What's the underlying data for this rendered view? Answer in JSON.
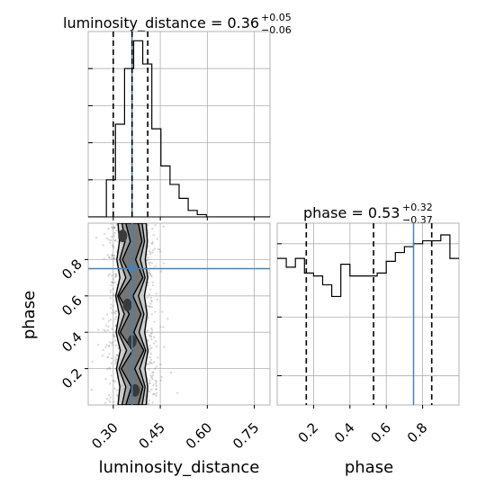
{
  "chart_data": {
    "type": "corner",
    "parameters": [
      "luminosity_distance",
      "phase"
    ],
    "truth": {
      "luminosity_distance": 0.36,
      "phase": 0.75
    },
    "panels": {
      "luminosity_distance_hist": {
        "title": {
          "main": "luminosity_distance = 0.36",
          "sup": "+0.05",
          "sub": "−0.06"
        },
        "quantiles": [
          0.3,
          0.36,
          0.41
        ],
        "xlim": [
          0.22,
          0.8
        ],
        "bins": [
          0.22,
          0.249,
          0.278,
          0.307,
          0.336,
          0.365,
          0.394,
          0.423,
          0.452,
          0.481,
          0.51,
          0.539,
          0.568,
          0.597,
          0.626,
          0.655,
          0.684,
          0.713,
          0.742,
          0.771,
          0.8
        ],
        "counts": [
          0,
          0,
          8,
          20,
          32,
          38,
          33,
          19,
          11,
          7,
          4,
          1.4,
          0.5,
          0,
          0,
          0,
          0,
          0,
          0,
          0
        ]
      },
      "phase_hist": {
        "title": {
          "main": "phase = 0.53",
          "sup": "+0.32",
          "sub": "−0.37"
        },
        "quantiles": [
          0.16,
          0.53,
          0.85
        ],
        "xlim": [
          0.0,
          1.0
        ],
        "bins": [
          0.0,
          0.05,
          0.1,
          0.15,
          0.2,
          0.25,
          0.3,
          0.35,
          0.4,
          0.45,
          0.5,
          0.55,
          0.6,
          0.65,
          0.7,
          0.75,
          0.8,
          0.85,
          0.9,
          0.95,
          1.0
        ],
        "counts": [
          50,
          47,
          50,
          45,
          44,
          41,
          37,
          48,
          44,
          44,
          44,
          45,
          49,
          52,
          54,
          55,
          56,
          56,
          58,
          50
        ],
        "ylim": [
          0,
          62
        ]
      },
      "joint": {
        "xlim": [
          0.22,
          0.8
        ],
        "ylim": [
          0.0,
          1.0
        ],
        "xlabel": "luminosity_distance",
        "ylabel": "phase",
        "contour_x_centers": [
          0.325,
          0.355,
          0.385
        ],
        "contour_half_widths": [
          0.045,
          0.032,
          0.02
        ]
      }
    },
    "ticks": {
      "ld": [
        0.3,
        0.45,
        0.6,
        0.75
      ],
      "ld_labels": [
        "0.30",
        "0.45",
        "0.60",
        "0.75"
      ],
      "phase": [
        0.2,
        0.4,
        0.6,
        0.8
      ],
      "phase_labels": [
        "0.2",
        "0.4",
        "0.6",
        "0.8"
      ]
    },
    "grid": true,
    "colors": {
      "line": "#000000",
      "truth": "#4682b4",
      "grid": "#b0b0b0",
      "scatter": "#888888"
    }
  }
}
